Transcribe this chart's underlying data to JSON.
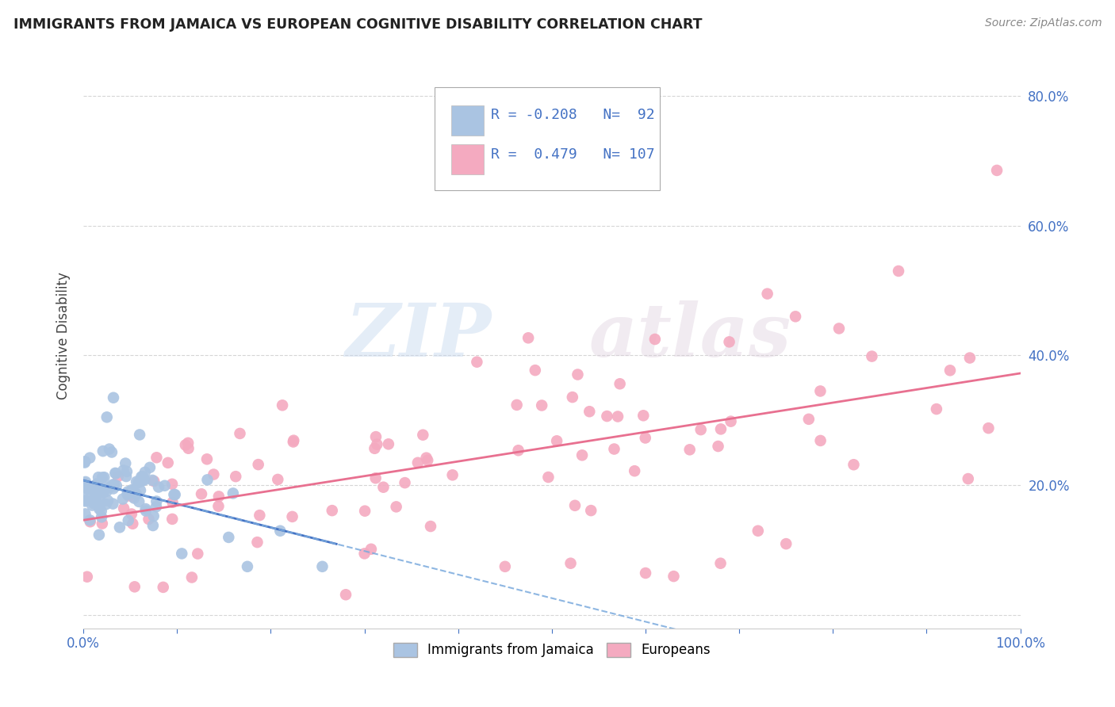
{
  "title": "IMMIGRANTS FROM JAMAICA VS EUROPEAN COGNITIVE DISABILITY CORRELATION CHART",
  "source": "Source: ZipAtlas.com",
  "ylabel_label": "Cognitive Disability",
  "watermark_zip": "ZIP",
  "watermark_atlas": "atlas",
  "legend1_label": "Immigrants from Jamaica",
  "legend2_label": "Europeans",
  "R1": -0.208,
  "N1": 92,
  "R2": 0.479,
  "N2": 107,
  "color_jamaica": "#aac4e2",
  "color_europe": "#f4aac0",
  "line_jamaica_solid": "#4472c4",
  "line_jamaica_dash": "#7aaadd",
  "line_europe": "#e87090",
  "background_color": "#ffffff",
  "grid_color": "#cccccc",
  "xlim": [
    0.0,
    1.0
  ],
  "ylim": [
    -0.02,
    0.88
  ],
  "title_color": "#222222",
  "source_color": "#888888",
  "tick_color": "#4472c4",
  "right_ytick_color": "#4472c4"
}
